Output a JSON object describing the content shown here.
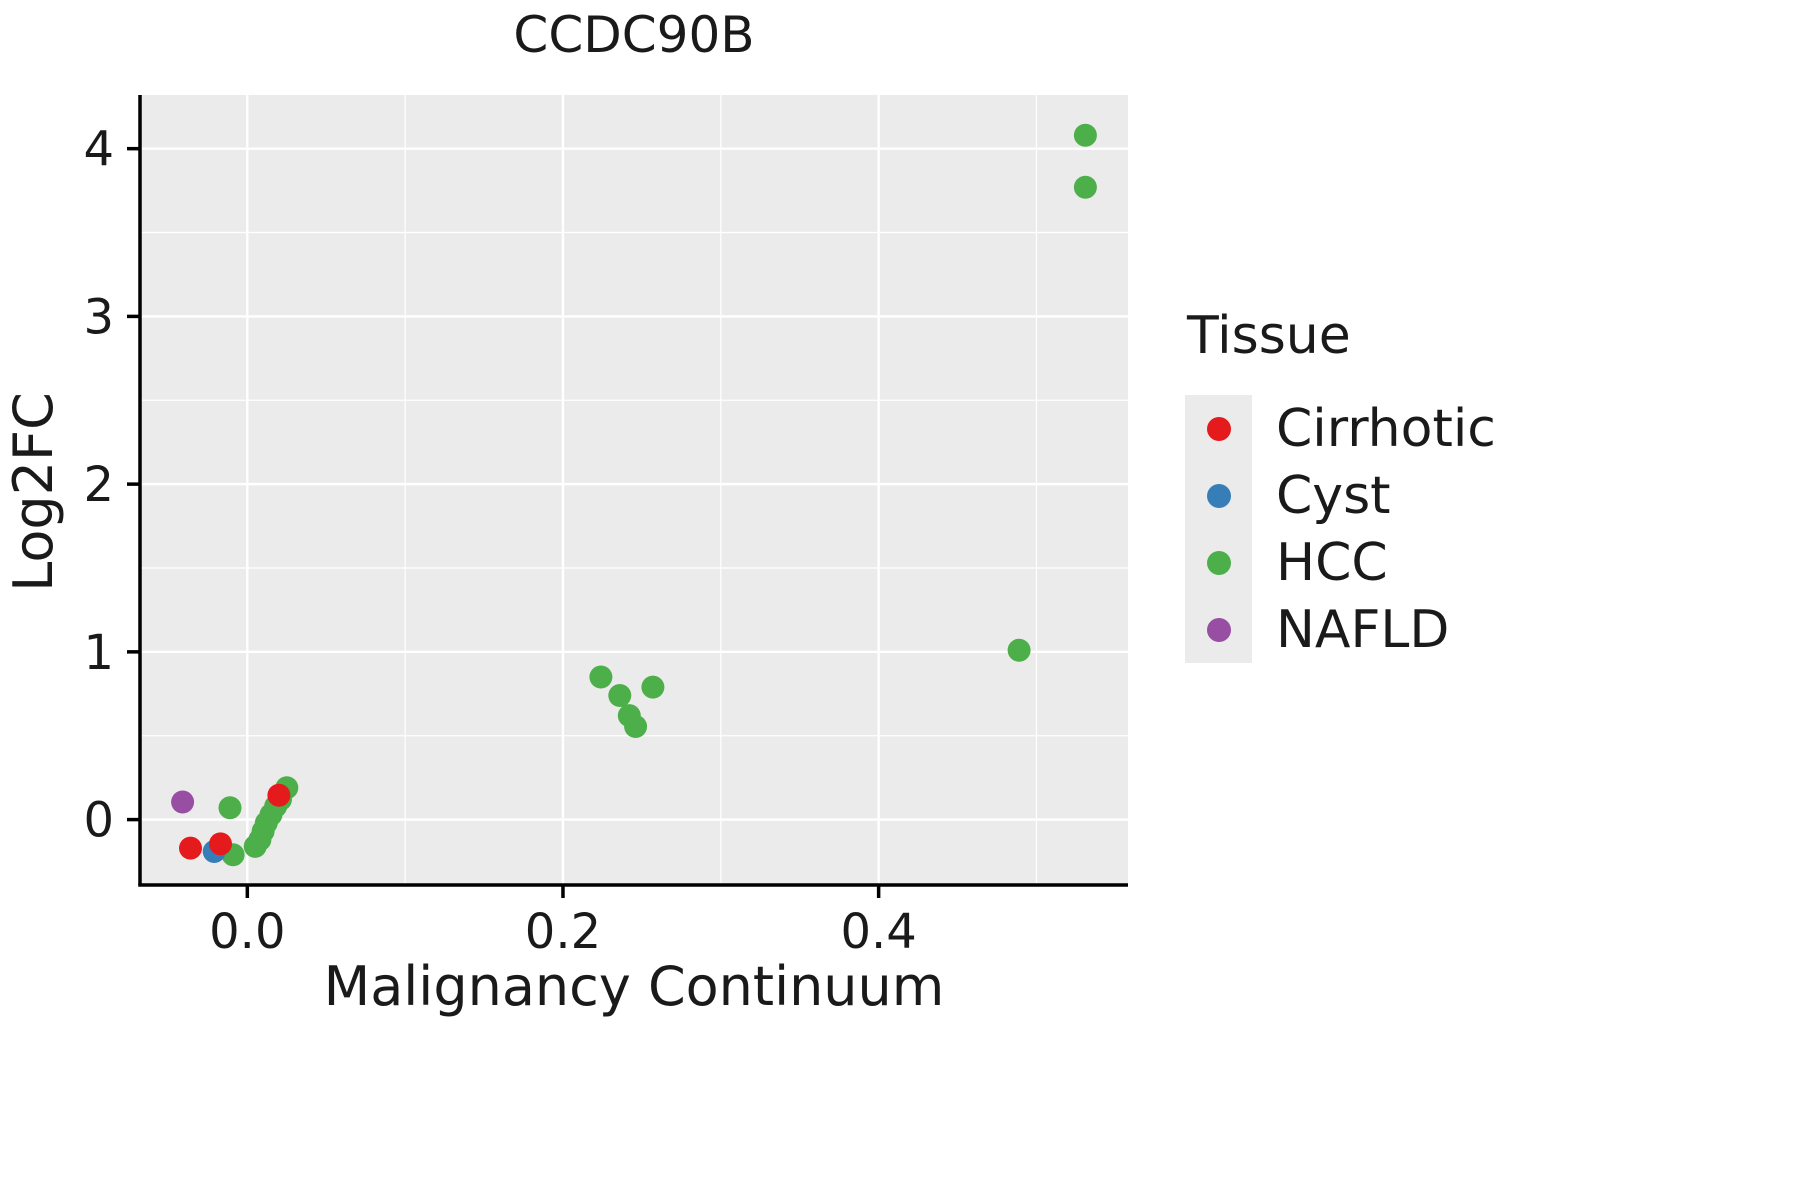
{
  "title": "CCDC90B",
  "axes": {
    "x_label": "Malignancy Continuum",
    "y_label": "Log2FC"
  },
  "legend": {
    "title": "Tissue",
    "items": [
      {
        "label": "Cirrhotic",
        "color": "#e41a1c"
      },
      {
        "label": "Cyst",
        "color": "#377eb8"
      },
      {
        "label": "HCC",
        "color": "#4daf4a"
      },
      {
        "label": "NAFLD",
        "color": "#984ea3"
      }
    ]
  },
  "colors": {
    "panel_background": "#ebebeb",
    "grid": "#ffffff",
    "axis": "#000000",
    "text": "#1a1a1a"
  },
  "chart_data": {
    "type": "scatter",
    "title": "CCDC90B",
    "xlabel": "Malignancy Continuum",
    "ylabel": "Log2FC",
    "xlim": [
      -0.068,
      0.558
    ],
    "ylim": [
      -0.39,
      4.32
    ],
    "x_ticks": [
      0.0,
      0.2,
      0.4
    ],
    "x_tick_labels": [
      "0.0",
      "0.2",
      "0.4"
    ],
    "y_ticks": [
      0,
      1,
      2,
      3,
      4
    ],
    "y_tick_labels": [
      "0",
      "1",
      "2",
      "3",
      "4"
    ],
    "x_minor_gridlines": [
      0.1,
      0.3,
      0.5
    ],
    "y_minor_gridlines": [
      0.5,
      1.5,
      2.5,
      3.5
    ],
    "grid": true,
    "legend_position": "right",
    "point_radius": 11.5,
    "series": [
      {
        "name": "HCC",
        "color": "#4daf4a",
        "points": [
          [
            0.531,
            4.08
          ],
          [
            0.531,
            3.77
          ],
          [
            0.489,
            1.01
          ],
          [
            0.224,
            0.85
          ],
          [
            0.236,
            0.74
          ],
          [
            0.257,
            0.79
          ],
          [
            0.242,
            0.62
          ],
          [
            0.246,
            0.555
          ],
          [
            -0.011,
            0.07
          ],
          [
            -0.009,
            -0.21
          ],
          [
            0.005,
            -0.16
          ],
          [
            0.008,
            -0.12
          ],
          [
            0.01,
            -0.07
          ],
          [
            0.012,
            -0.02
          ],
          [
            0.015,
            0.03
          ],
          [
            0.018,
            0.08
          ],
          [
            0.021,
            0.12
          ],
          [
            0.025,
            0.19
          ]
        ]
      },
      {
        "name": "Cyst",
        "color": "#377eb8",
        "points": [
          [
            -0.021,
            -0.19
          ]
        ]
      },
      {
        "name": "Cirrhotic",
        "color": "#e41a1c",
        "points": [
          [
            -0.036,
            -0.17
          ],
          [
            -0.017,
            -0.145
          ],
          [
            0.02,
            0.145
          ]
        ]
      },
      {
        "name": "NAFLD",
        "color": "#984ea3",
        "points": [
          [
            -0.041,
            0.105
          ]
        ]
      }
    ]
  }
}
